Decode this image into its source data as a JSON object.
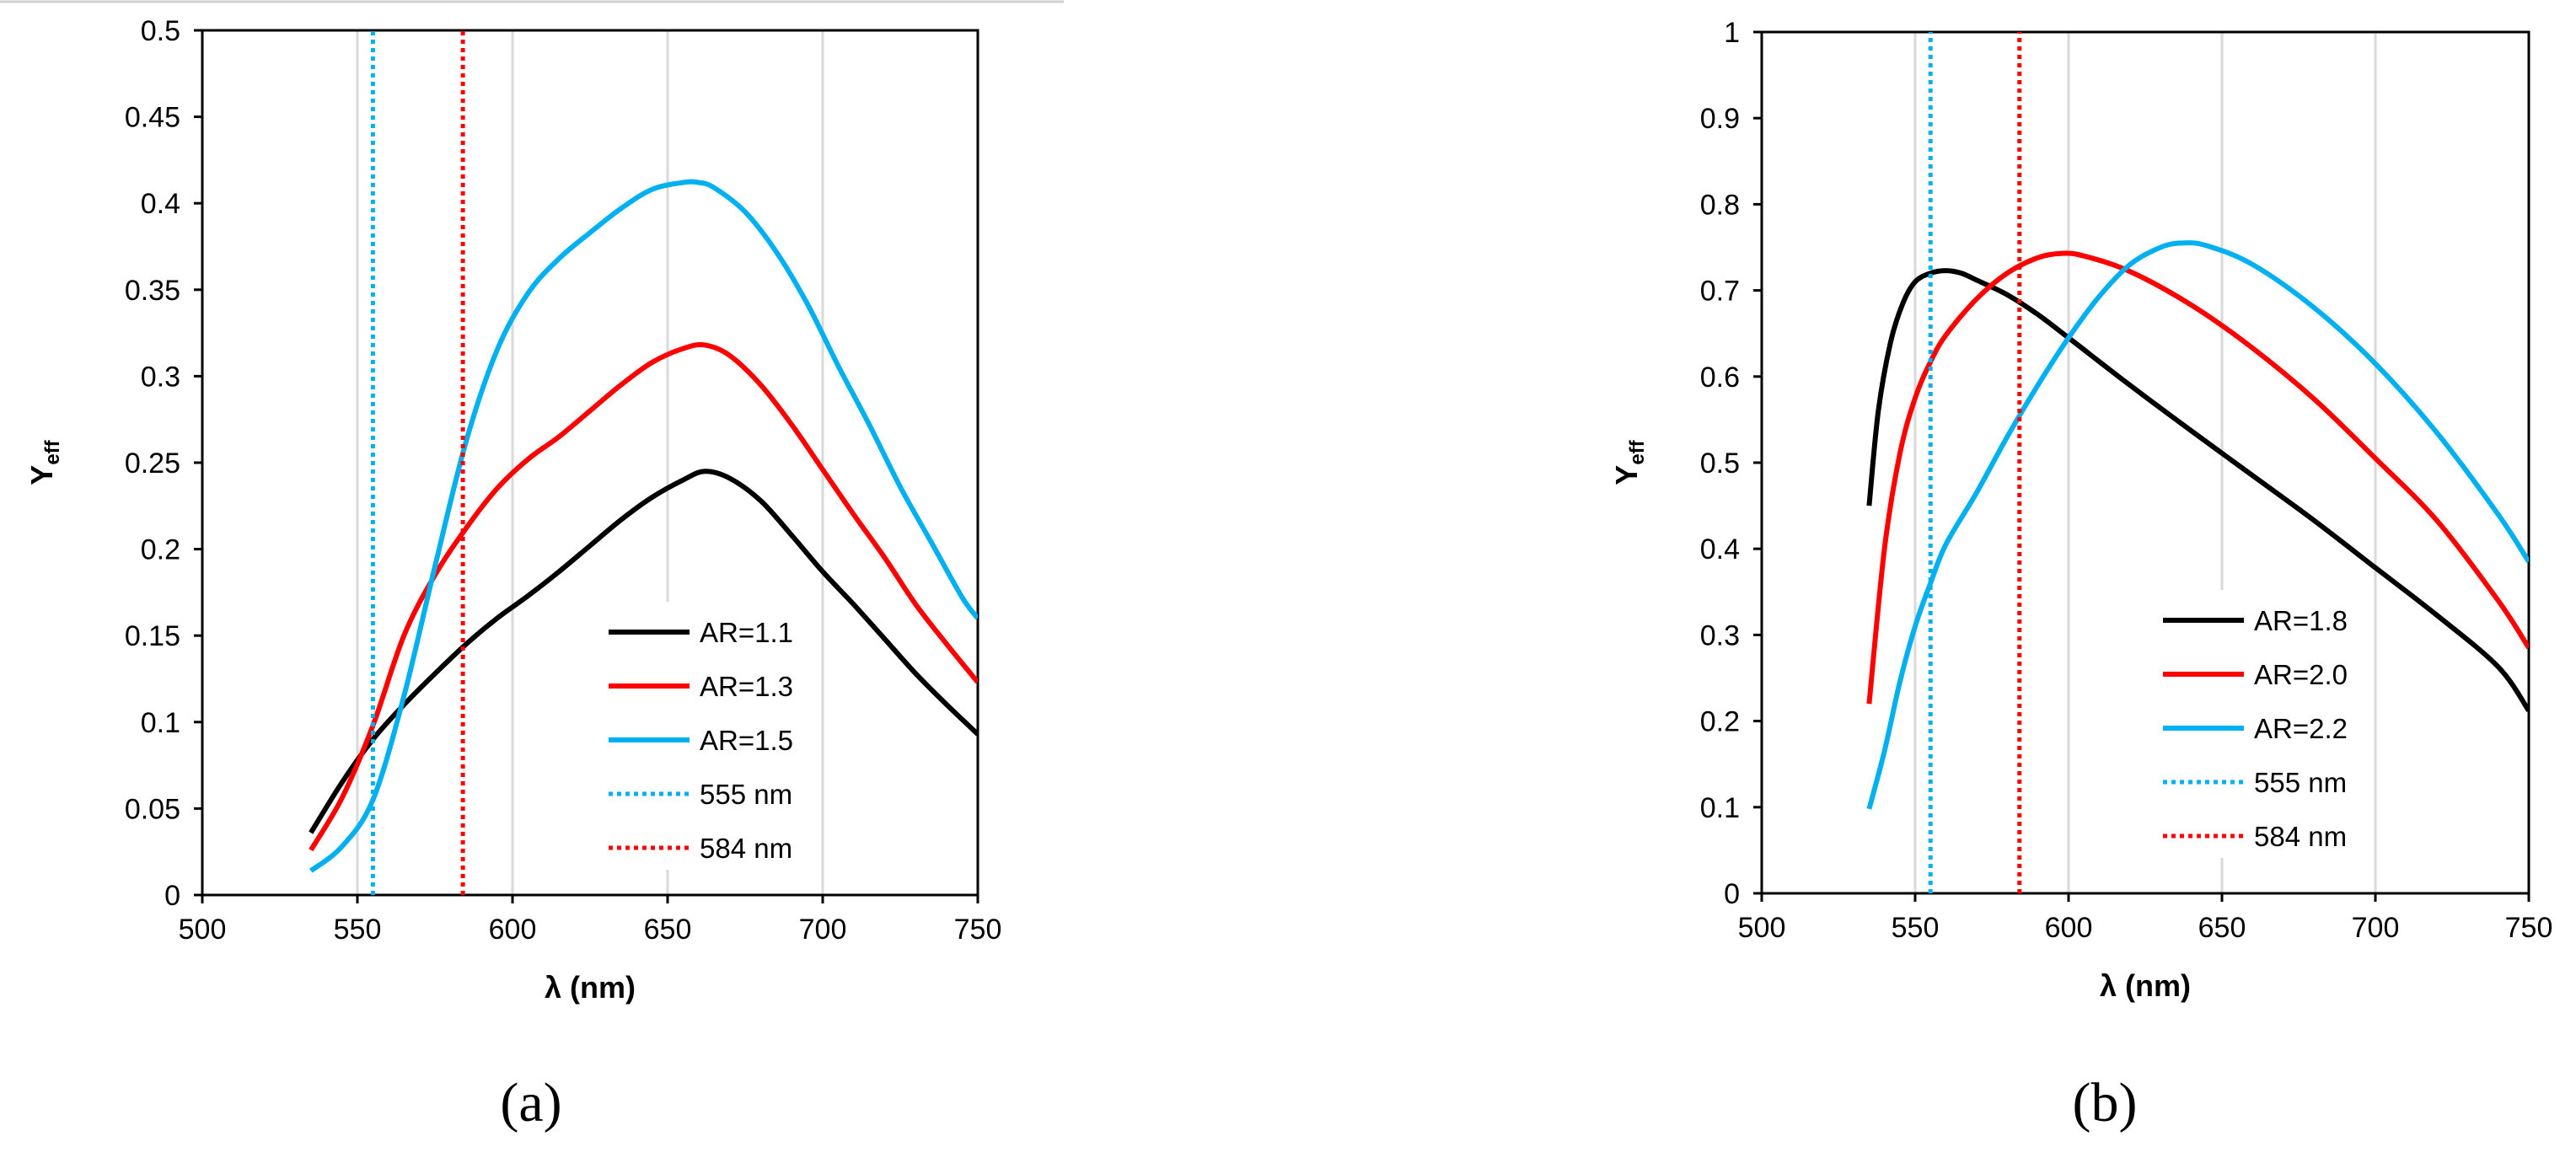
{
  "figure": {
    "panels": [
      "(a)",
      "(b)"
    ]
  },
  "chart_data": [
    {
      "type": "line",
      "panel": "(a)",
      "xlabel": "λ (nm)",
      "ylabel_main": "Y",
      "ylabel_sub": "eff",
      "xlim": [
        500,
        750
      ],
      "ylim": [
        0,
        0.5
      ],
      "xticks": [
        500,
        550,
        600,
        650,
        700,
        750
      ],
      "xtick_labels": [
        "500",
        "550",
        "600",
        "650",
        "700",
        "750"
      ],
      "yticks": [
        0,
        0.05,
        0.1,
        0.15,
        0.2,
        0.25,
        0.3,
        0.35,
        0.4,
        0.45,
        0.5
      ],
      "ytick_labels": [
        "0",
        "0.05",
        "0.1",
        "0.15",
        "0.2",
        "0.25",
        "0.3",
        "0.35",
        "0.4",
        "0.45",
        "0.5"
      ],
      "grid": "vertical",
      "legend_position": "lower-right",
      "series": [
        {
          "name": "AR=1.1",
          "color": "#000000",
          "style": "solid",
          "x": [
            535,
            545,
            555,
            565,
            575,
            585,
            595,
            605,
            615,
            625,
            635,
            645,
            655,
            662,
            670,
            680,
            690,
            700,
            710,
            720,
            730,
            740,
            750
          ],
          "y": [
            0.036,
            0.065,
            0.09,
            0.11,
            0.128,
            0.145,
            0.16,
            0.173,
            0.187,
            0.202,
            0.217,
            0.23,
            0.24,
            0.245,
            0.241,
            0.228,
            0.208,
            0.187,
            0.168,
            0.148,
            0.128,
            0.11,
            0.093
          ]
        },
        {
          "name": "AR=1.3",
          "color": "#ff0000",
          "style": "solid",
          "x": [
            535,
            545,
            555,
            565,
            575,
            585,
            595,
            605,
            615,
            625,
            635,
            645,
            655,
            662,
            670,
            680,
            690,
            700,
            710,
            720,
            730,
            740,
            750
          ],
          "y": [
            0.026,
            0.056,
            0.098,
            0.15,
            0.185,
            0.212,
            0.235,
            0.252,
            0.265,
            0.28,
            0.295,
            0.308,
            0.316,
            0.318,
            0.312,
            0.295,
            0.272,
            0.246,
            0.22,
            0.195,
            0.168,
            0.145,
            0.123
          ]
        },
        {
          "name": "AR=1.5",
          "color": "#00b0f0",
          "style": "solid",
          "x": [
            535,
            545,
            555,
            565,
            575,
            585,
            595,
            605,
            615,
            625,
            635,
            645,
            655,
            660,
            665,
            675,
            685,
            695,
            705,
            715,
            725,
            735,
            745,
            750
          ],
          "y": [
            0.014,
            0.028,
            0.055,
            0.115,
            0.19,
            0.262,
            0.315,
            0.348,
            0.368,
            0.383,
            0.397,
            0.408,
            0.412,
            0.412,
            0.409,
            0.395,
            0.372,
            0.342,
            0.306,
            0.272,
            0.236,
            0.204,
            0.172,
            0.16
          ]
        },
        {
          "name": "555 nm",
          "color": "#00b0f0",
          "style": "dotted",
          "x": [
            555,
            555
          ],
          "y": [
            0,
            0.5
          ]
        },
        {
          "name": "584 nm",
          "color": "#ff0000",
          "style": "dotted",
          "x": [
            584,
            584
          ],
          "y": [
            0,
            0.5
          ]
        }
      ]
    },
    {
      "type": "line",
      "panel": "(b)",
      "xlabel": "λ (nm)",
      "ylabel_main": "Y",
      "ylabel_sub": "eff",
      "xlim": [
        500,
        750
      ],
      "ylim": [
        0,
        1
      ],
      "xticks": [
        500,
        550,
        600,
        650,
        700,
        750
      ],
      "xtick_labels": [
        "500",
        "550",
        "600",
        "650",
        "700",
        "750"
      ],
      "yticks": [
        0,
        0.1,
        0.2,
        0.3,
        0.4,
        0.5,
        0.6,
        0.7,
        0.8,
        0.9,
        1
      ],
      "ytick_labels": [
        "0",
        "0.1",
        "0.2",
        "0.3",
        "0.4",
        "0.5",
        "0.6",
        "0.7",
        "0.8",
        "0.9",
        "1"
      ],
      "grid": "vertical",
      "legend_position": "lower-right",
      "series": [
        {
          "name": "AR=1.8",
          "color": "#000000",
          "style": "solid",
          "x": [
            535,
            538,
            542,
            546,
            550,
            555,
            560,
            565,
            570,
            580,
            590,
            600,
            620,
            640,
            660,
            680,
            700,
            720,
            740,
            750
          ],
          "y": [
            0.45,
            0.56,
            0.64,
            0.685,
            0.71,
            0.72,
            0.723,
            0.72,
            0.712,
            0.695,
            0.672,
            0.645,
            0.59,
            0.537,
            0.485,
            0.433,
            0.378,
            0.323,
            0.263,
            0.212
          ]
        },
        {
          "name": "AR=2.0",
          "color": "#ff0000",
          "style": "solid",
          "x": [
            535,
            540,
            545,
            550,
            555,
            560,
            570,
            580,
            590,
            598,
            605,
            620,
            640,
            660,
            680,
            700,
            720,
            740,
            750
          ],
          "y": [
            0.22,
            0.4,
            0.51,
            0.575,
            0.617,
            0.648,
            0.69,
            0.72,
            0.738,
            0.743,
            0.74,
            0.722,
            0.683,
            0.633,
            0.574,
            0.505,
            0.433,
            0.34,
            0.285
          ]
        },
        {
          "name": "AR=2.2",
          "color": "#00b0f0",
          "style": "solid",
          "x": [
            535,
            540,
            545,
            550,
            555,
            560,
            570,
            580,
            590,
            600,
            610,
            620,
            630,
            637,
            645,
            660,
            680,
            700,
            720,
            740,
            750
          ],
          "y": [
            0.098,
            0.165,
            0.245,
            0.31,
            0.36,
            0.405,
            0.465,
            0.53,
            0.59,
            0.645,
            0.693,
            0.73,
            0.75,
            0.755,
            0.752,
            0.73,
            0.68,
            0.615,
            0.535,
            0.44,
            0.385
          ]
        },
        {
          "name": "555 nm",
          "color": "#00b0f0",
          "style": "dotted",
          "x": [
            555,
            555
          ],
          "y": [
            0,
            1
          ]
        },
        {
          "name": "584 nm",
          "color": "#ff0000",
          "style": "dotted",
          "x": [
            584,
            584
          ],
          "y": [
            0,
            1
          ]
        }
      ]
    }
  ]
}
